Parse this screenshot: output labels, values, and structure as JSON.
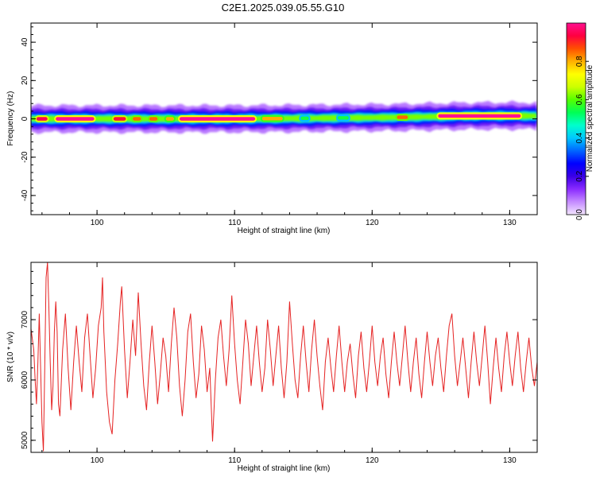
{
  "page": {
    "title": "C2E1.2025.039.05.55.G10"
  },
  "chart_data": [
    {
      "type": "heatmap",
      "title": "C2E1.2025.039.05.55.G10",
      "xlabel": "Height of straight line (km)",
      "ylabel": "Frequency (Hz)",
      "xlim": [
        95.2,
        132.0
      ],
      "ylim": [
        -50,
        50
      ],
      "xticks": [
        100,
        110,
        120,
        130
      ],
      "yticks": [
        -40,
        -20,
        0,
        20,
        40
      ],
      "colorbar": {
        "label": "Normalized spectral amplitude",
        "range": [
          0,
          1
        ],
        "ticks": [
          0.0,
          0.2,
          0.4,
          0.6,
          0.8
        ],
        "colors": [
          "#f3e6ff",
          "#c58cff",
          "#8a2bff",
          "#3a00e6",
          "#0000ff",
          "#0066ff",
          "#00c8ff",
          "#00ffcc",
          "#00ff55",
          "#55ff00",
          "#ccff00",
          "#ffff00",
          "#ffb000",
          "#ff5000",
          "#ff0040",
          "#ff1090"
        ]
      },
      "ridge": [
        {
          "x": 95.2,
          "y": 0.0
        },
        {
          "x": 100.0,
          "y": 0.0
        },
        {
          "x": 105.0,
          "y": 0.0
        },
        {
          "x": 110.0,
          "y": 0.0
        },
        {
          "x": 114.0,
          "y": 0.2
        },
        {
          "x": 118.0,
          "y": 0.5
        },
        {
          "x": 122.0,
          "y": 0.8
        },
        {
          "x": 125.0,
          "y": 1.2
        },
        {
          "x": 127.0,
          "y": 1.5
        },
        {
          "x": 130.0,
          "y": 1.6
        },
        {
          "x": 132.0,
          "y": 1.5
        }
      ],
      "peaks": [
        {
          "x1": 95.6,
          "x2": 96.4,
          "a": 0.95
        },
        {
          "x1": 97.0,
          "x2": 99.8,
          "a": 1.0
        },
        {
          "x1": 101.2,
          "x2": 102.1,
          "a": 0.92
        },
        {
          "x1": 102.6,
          "x2": 103.2,
          "a": 0.85
        },
        {
          "x1": 103.8,
          "x2": 104.4,
          "a": 0.85
        },
        {
          "x1": 105.0,
          "x2": 105.6,
          "a": 0.8
        },
        {
          "x1": 106.0,
          "x2": 111.5,
          "a": 1.0
        },
        {
          "x1": 112.0,
          "x2": 113.5,
          "a": 0.8
        },
        {
          "x1": 114.8,
          "x2": 115.4,
          "a": 0.55
        },
        {
          "x1": 117.5,
          "x2": 118.3,
          "a": 0.55
        },
        {
          "x1": 121.8,
          "x2": 122.6,
          "a": 0.85
        },
        {
          "x1": 124.8,
          "x2": 130.8,
          "a": 1.0
        }
      ]
    },
    {
      "type": "line",
      "xlabel": "Height of straight line (km)",
      "ylabel": "SNR (10 * v/v)",
      "xlim": [
        95.2,
        132.0
      ],
      "ylim": [
        4800,
        7950
      ],
      "xticks": [
        100,
        110,
        120,
        130
      ],
      "yticks": [
        5000,
        6000,
        7000
      ],
      "series": [
        {
          "color": "#e52222",
          "points": [
            [
              95.2,
              6850
            ],
            [
              95.4,
              6500
            ],
            [
              95.5,
              6000
            ],
            [
              95.6,
              5600
            ],
            [
              95.7,
              6300
            ],
            [
              95.8,
              7100
            ],
            [
              95.9,
              6200
            ],
            [
              96.0,
              5300
            ],
            [
              96.1,
              4820
            ],
            [
              96.2,
              6200
            ],
            [
              96.3,
              7700
            ],
            [
              96.4,
              7950
            ],
            [
              96.5,
              7200
            ],
            [
              96.6,
              6300
            ],
            [
              96.7,
              5500
            ],
            [
              96.8,
              5900
            ],
            [
              96.9,
              6800
            ],
            [
              97.0,
              7300
            ],
            [
              97.1,
              6800
            ],
            [
              97.2,
              5600
            ],
            [
              97.3,
              5400
            ],
            [
              97.5,
              6500
            ],
            [
              97.7,
              7100
            ],
            [
              97.9,
              6200
            ],
            [
              98.1,
              5500
            ],
            [
              98.3,
              6300
            ],
            [
              98.5,
              6900
            ],
            [
              98.7,
              6300
            ],
            [
              98.9,
              5800
            ],
            [
              99.1,
              6700
            ],
            [
              99.3,
              7100
            ],
            [
              99.5,
              6400
            ],
            [
              99.7,
              5700
            ],
            [
              99.9,
              6200
            ],
            [
              100.1,
              6900
            ],
            [
              100.3,
              7200
            ],
            [
              100.4,
              7700
            ],
            [
              100.5,
              6800
            ],
            [
              100.7,
              5800
            ],
            [
              100.9,
              5300
            ],
            [
              101.1,
              5100
            ],
            [
              101.3,
              6000
            ],
            [
              101.5,
              6600
            ],
            [
              101.7,
              7300
            ],
            [
              101.8,
              7550
            ],
            [
              102.0,
              6500
            ],
            [
              102.2,
              5700
            ],
            [
              102.4,
              6300
            ],
            [
              102.6,
              7000
            ],
            [
              102.8,
              6400
            ],
            [
              103.0,
              7450
            ],
            [
              103.2,
              6600
            ],
            [
              103.4,
              5900
            ],
            [
              103.6,
              5500
            ],
            [
              103.8,
              6300
            ],
            [
              104.0,
              6900
            ],
            [
              104.2,
              6300
            ],
            [
              104.4,
              5600
            ],
            [
              104.6,
              6100
            ],
            [
              104.8,
              6700
            ],
            [
              105.0,
              6400
            ],
            [
              105.2,
              5800
            ],
            [
              105.4,
              6600
            ],
            [
              105.6,
              7200
            ],
            [
              105.8,
              6700
            ],
            [
              106.0,
              5900
            ],
            [
              106.2,
              5400
            ],
            [
              106.4,
              6000
            ],
            [
              106.6,
              6800
            ],
            [
              106.8,
              7100
            ],
            [
              107.0,
              6300
            ],
            [
              107.2,
              5700
            ],
            [
              107.4,
              6100
            ],
            [
              107.6,
              6900
            ],
            [
              107.8,
              6500
            ],
            [
              108.0,
              5800
            ],
            [
              108.2,
              6200
            ],
            [
              108.4,
              4980
            ],
            [
              108.6,
              6000
            ],
            [
              108.8,
              6700
            ],
            [
              109.0,
              7000
            ],
            [
              109.2,
              6400
            ],
            [
              109.4,
              5900
            ],
            [
              109.6,
              6500
            ],
            [
              109.8,
              7400
            ],
            [
              110.0,
              6600
            ],
            [
              110.2,
              6000
            ],
            [
              110.4,
              5600
            ],
            [
              110.6,
              6300
            ],
            [
              110.8,
              7000
            ],
            [
              111.0,
              6600
            ],
            [
              111.2,
              5900
            ],
            [
              111.4,
              6400
            ],
            [
              111.6,
              6900
            ],
            [
              111.8,
              6300
            ],
            [
              112.0,
              5800
            ],
            [
              112.2,
              6200
            ],
            [
              112.4,
              7000
            ],
            [
              112.6,
              6500
            ],
            [
              112.8,
              5900
            ],
            [
              113.0,
              6400
            ],
            [
              113.2,
              6900
            ],
            [
              113.4,
              6200
            ],
            [
              113.6,
              5700
            ],
            [
              113.8,
              6300
            ],
            [
              114.0,
              7300
            ],
            [
              114.2,
              6600
            ],
            [
              114.4,
              6000
            ],
            [
              114.6,
              5700
            ],
            [
              114.8,
              6400
            ],
            [
              115.0,
              6900
            ],
            [
              115.2,
              6300
            ],
            [
              115.4,
              5800
            ],
            [
              115.6,
              6500
            ],
            [
              115.8,
              7000
            ],
            [
              116.0,
              6400
            ],
            [
              116.2,
              5900
            ],
            [
              116.4,
              5500
            ],
            [
              116.6,
              6300
            ],
            [
              116.8,
              6700
            ],
            [
              117.0,
              6200
            ],
            [
              117.2,
              5800
            ],
            [
              117.4,
              6400
            ],
            [
              117.6,
              6900
            ],
            [
              117.8,
              6300
            ],
            [
              118.0,
              5800
            ],
            [
              118.2,
              6300
            ],
            [
              118.4,
              6600
            ],
            [
              118.6,
              6100
            ],
            [
              118.8,
              5700
            ],
            [
              119.0,
              6400
            ],
            [
              119.2,
              6800
            ],
            [
              119.4,
              6200
            ],
            [
              119.6,
              5800
            ],
            [
              119.8,
              6300
            ],
            [
              120.0,
              6900
            ],
            [
              120.2,
              6300
            ],
            [
              120.4,
              5900
            ],
            [
              120.6,
              6400
            ],
            [
              120.8,
              6700
            ],
            [
              121.0,
              6100
            ],
            [
              121.2,
              5700
            ],
            [
              121.4,
              6300
            ],
            [
              121.6,
              6800
            ],
            [
              121.8,
              6300
            ],
            [
              122.0,
              5900
            ],
            [
              122.2,
              6400
            ],
            [
              122.4,
              6900
            ],
            [
              122.6,
              6300
            ],
            [
              122.8,
              5800
            ],
            [
              123.0,
              6300
            ],
            [
              123.2,
              6700
            ],
            [
              123.4,
              6100
            ],
            [
              123.6,
              5700
            ],
            [
              123.8,
              6300
            ],
            [
              124.0,
              6800
            ],
            [
              124.2,
              6300
            ],
            [
              124.4,
              5900
            ],
            [
              124.6,
              6400
            ],
            [
              124.8,
              6700
            ],
            [
              125.0,
              6200
            ],
            [
              125.2,
              5800
            ],
            [
              125.4,
              6400
            ],
            [
              125.6,
              6900
            ],
            [
              125.8,
              7100
            ],
            [
              126.0,
              6400
            ],
            [
              126.2,
              5900
            ],
            [
              126.4,
              6300
            ],
            [
              126.6,
              6700
            ],
            [
              126.8,
              6200
            ],
            [
              127.0,
              5700
            ],
            [
              127.2,
              6300
            ],
            [
              127.4,
              6800
            ],
            [
              127.6,
              6300
            ],
            [
              127.8,
              5900
            ],
            [
              128.0,
              6400
            ],
            [
              128.2,
              6900
            ],
            [
              128.4,
              6300
            ],
            [
              128.6,
              5600
            ],
            [
              128.8,
              6200
            ],
            [
              129.0,
              6700
            ],
            [
              129.2,
              6200
            ],
            [
              129.4,
              5800
            ],
            [
              129.6,
              6400
            ],
            [
              129.8,
              6800
            ],
            [
              130.0,
              6300
            ],
            [
              130.2,
              5900
            ],
            [
              130.4,
              6400
            ],
            [
              130.6,
              6800
            ],
            [
              130.8,
              6200
            ],
            [
              131.0,
              5800
            ],
            [
              131.2,
              6300
            ],
            [
              131.4,
              6700
            ],
            [
              131.6,
              6200
            ],
            [
              131.8,
              5900
            ],
            [
              132.0,
              6300
            ]
          ]
        }
      ]
    }
  ]
}
